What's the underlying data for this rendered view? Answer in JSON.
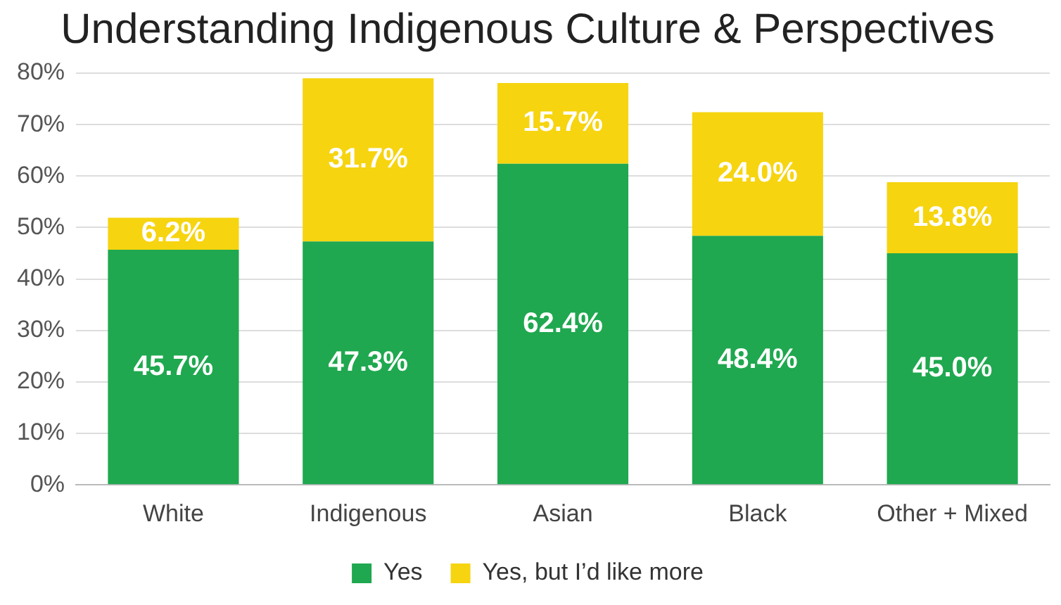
{
  "chart_data": {
    "type": "bar",
    "title": "Understanding Indigenous Culture & Perspectives",
    "categories": [
      "White",
      "Indigenous",
      "Asian",
      "Black",
      "Other + Mixed"
    ],
    "stacked": true,
    "series": [
      {
        "name": "Yes",
        "color": "#1fa84f",
        "values": [
          45.7,
          47.3,
          62.4,
          48.4,
          45.0
        ],
        "value_labels": [
          "45.7%",
          "47.3%",
          "62.4%",
          "48.4%",
          "45.0%"
        ]
      },
      {
        "name": "Yes, but I’d like more",
        "color": "#f6d410",
        "values": [
          6.2,
          31.7,
          15.7,
          24.0,
          13.8
        ],
        "value_labels": [
          "6.2%",
          "31.7%",
          "15.7%",
          "24.0%",
          "13.8%"
        ]
      }
    ],
    "ylim": [
      0,
      80
    ],
    "yticks": [
      {
        "value": 0,
        "label": "0%"
      },
      {
        "value": 10,
        "label": "10%"
      },
      {
        "value": 20,
        "label": "20%"
      },
      {
        "value": 30,
        "label": "30%"
      },
      {
        "value": 40,
        "label": "40%"
      },
      {
        "value": 50,
        "label": "50%"
      },
      {
        "value": 60,
        "label": "60%"
      },
      {
        "value": 70,
        "label": "70%"
      },
      {
        "value": 80,
        "label": "80%"
      }
    ],
    "grid": "y",
    "legend": "bottom"
  }
}
